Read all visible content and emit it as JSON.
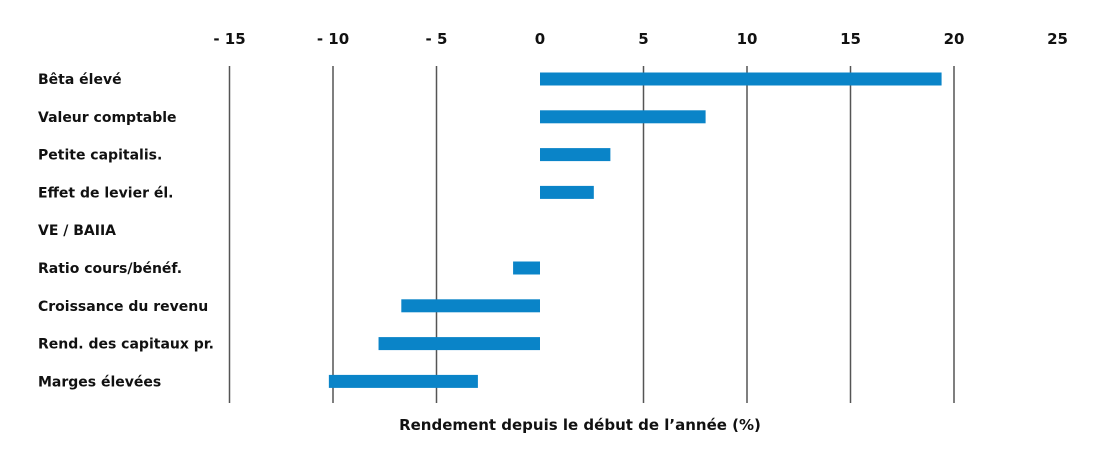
{
  "chart_data": {
    "type": "bar",
    "orientation": "horizontal",
    "title": "",
    "xlabel": "Rendement depuis le début de l’année (%)",
    "ylabel": "",
    "xlim": [
      -15,
      25
    ],
    "x_ticks": [
      -15,
      -10,
      -5,
      0,
      5,
      10,
      15,
      20,
      25
    ],
    "x_tick_labels": [
      "- 15",
      "- 10",
      "- 5",
      "0",
      "5",
      "10",
      "15",
      "20",
      "25"
    ],
    "x_axis_position": "top",
    "grid": "vertical lines at x ticks except 0 and 25",
    "legend": "none",
    "bar_color": "#0a84c8",
    "categories": [
      "Bêta élevé",
      "Valeur comptable",
      "Petite capitalis.",
      "Effet de levier él.",
      "VE / BAIIA",
      "Ratio cours/bénéf.",
      "Croissance du revenu",
      "Rend. des capitaux pr.",
      "Marges élevées"
    ],
    "bars": [
      {
        "start": 0,
        "end": 19.4
      },
      {
        "start": 0,
        "end": 8.0
      },
      {
        "start": 0,
        "end": 3.4
      },
      {
        "start": 0,
        "end": 2.6
      },
      {
        "start": 0,
        "end": 0
      },
      {
        "start": 0,
        "end": -1.3
      },
      {
        "start": 0,
        "end": -6.7
      },
      {
        "start": 0,
        "end": -7.8
      },
      {
        "start": -10.2,
        "end": -3.0
      }
    ]
  }
}
